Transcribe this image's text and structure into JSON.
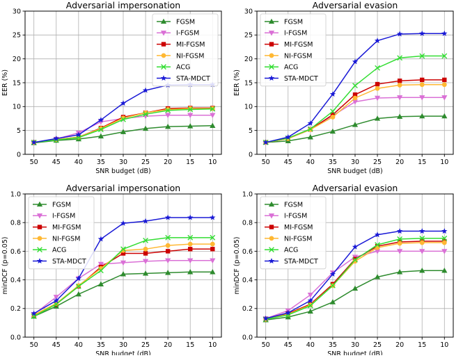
{
  "colors": {
    "FGSM": "#2e8b2e",
    "I-FGSM": "#da70d6",
    "MI-FGSM": "#cc0000",
    "NI-FGSM": "#ffb833",
    "ACG": "#33dd33",
    "STA-MDCT": "#1a1ad6"
  },
  "markers": {
    "FGSM": "triangle-up",
    "I-FGSM": "triangle-down",
    "MI-FGSM": "square",
    "NI-FGSM": "circle",
    "ACG": "x",
    "STA-MDCT": "star"
  },
  "chart_data": [
    {
      "type": "line",
      "title": "Adversarial impersonation",
      "xlabel": "SNR budget (dB)",
      "ylabel": "EER (%)",
      "x": [
        "50",
        "45",
        "40",
        "35",
        "30",
        "25",
        "20",
        "15",
        "10"
      ],
      "ylim": [
        0,
        30
      ],
      "yticks": [
        "0",
        "5",
        "10",
        "15",
        "20",
        "25",
        "30"
      ],
      "yticks_num": [
        0,
        5,
        10,
        15,
        20,
        25,
        30
      ],
      "grid": true,
      "legend": "top-right",
      "series": [
        {
          "name": "FGSM",
          "values": [
            2.4,
            2.9,
            3.2,
            3.8,
            4.7,
            5.4,
            5.8,
            5.9,
            6.0
          ]
        },
        {
          "name": "I-FGSM",
          "values": [
            2.5,
            3.2,
            4.5,
            6.8,
            7.5,
            8.0,
            8.2,
            8.2,
            8.2
          ]
        },
        {
          "name": "MI-FGSM",
          "values": [
            2.5,
            3.1,
            3.6,
            5.5,
            7.8,
            8.7,
            9.6,
            9.7,
            9.7
          ]
        },
        {
          "name": "NI-FGSM",
          "values": [
            2.5,
            3.1,
            3.6,
            5.4,
            7.6,
            8.7,
            9.4,
            9.6,
            9.6
          ]
        },
        {
          "name": "ACG",
          "values": [
            2.5,
            3.0,
            3.5,
            5.2,
            7.3,
            8.4,
            9.2,
            9.4,
            9.5
          ]
        },
        {
          "name": "STA-MDCT",
          "values": [
            2.5,
            3.3,
            4.1,
            7.2,
            10.7,
            13.4,
            14.5,
            14.6,
            14.6
          ]
        }
      ]
    },
    {
      "type": "line",
      "title": "Adversarial evasion",
      "xlabel": "SNR budget (dB)",
      "ylabel": "EER (%)",
      "x": [
        "50",
        "45",
        "40",
        "35",
        "30",
        "25",
        "20",
        "15",
        "10"
      ],
      "ylim": [
        0,
        30
      ],
      "yticks": [
        "0",
        "5",
        "10",
        "15",
        "20",
        "25",
        "30"
      ],
      "yticks_num": [
        0,
        5,
        10,
        15,
        20,
        25,
        30
      ],
      "grid": true,
      "legend": "top-left",
      "series": [
        {
          "name": "FGSM",
          "values": [
            2.5,
            2.8,
            3.6,
            4.8,
            6.2,
            7.5,
            7.9,
            8.0,
            8.0
          ]
        },
        {
          "name": "I-FGSM",
          "values": [
            2.5,
            3.4,
            5.3,
            8.1,
            11.0,
            11.8,
            11.9,
            11.9,
            11.9
          ]
        },
        {
          "name": "MI-FGSM",
          "values": [
            2.5,
            3.3,
            5.2,
            8.3,
            12.5,
            14.7,
            15.4,
            15.6,
            15.6
          ]
        },
        {
          "name": "NI-FGSM",
          "values": [
            2.5,
            3.3,
            5.2,
            7.8,
            11.8,
            13.8,
            14.5,
            14.6,
            14.6
          ]
        },
        {
          "name": "ACG",
          "values": [
            2.5,
            3.4,
            5.3,
            9.0,
            14.4,
            18.1,
            20.2,
            20.6,
            20.6
          ]
        },
        {
          "name": "STA-MDCT",
          "values": [
            2.5,
            3.6,
            6.5,
            12.6,
            19.4,
            23.8,
            25.2,
            25.3,
            25.3
          ]
        }
      ]
    },
    {
      "type": "line",
      "title": "Adversarial impersonation",
      "xlabel": "SNR budget (dB)",
      "ylabel": "minDCF (p=0.05)",
      "x": [
        "50",
        "45",
        "40",
        "35",
        "30",
        "25",
        "20",
        "15",
        "10"
      ],
      "ylim": [
        0,
        1
      ],
      "yticks": [
        "0.0",
        "0.2",
        "0.4",
        "0.6",
        "0.8",
        "1.0"
      ],
      "yticks_num": [
        0,
        0.2,
        0.4,
        0.6,
        0.8,
        1.0
      ],
      "grid": true,
      "legend": "top-left",
      "series": [
        {
          "name": "FGSM",
          "values": [
            0.145,
            0.215,
            0.3,
            0.37,
            0.44,
            0.445,
            0.45,
            0.455,
            0.455
          ]
        },
        {
          "name": "I-FGSM",
          "values": [
            0.16,
            0.28,
            0.41,
            0.51,
            0.52,
            0.53,
            0.535,
            0.535,
            0.535
          ]
        },
        {
          "name": "MI-FGSM",
          "values": [
            0.155,
            0.23,
            0.355,
            0.49,
            0.585,
            0.585,
            0.6,
            0.615,
            0.615
          ]
        },
        {
          "name": "NI-FGSM",
          "values": [
            0.155,
            0.235,
            0.36,
            0.48,
            0.605,
            0.615,
            0.64,
            0.65,
            0.65
          ]
        },
        {
          "name": "ACG",
          "values": [
            0.145,
            0.23,
            0.355,
            0.465,
            0.615,
            0.675,
            0.695,
            0.695,
            0.695
          ]
        },
        {
          "name": "STA-MDCT",
          "values": [
            0.165,
            0.255,
            0.41,
            0.685,
            0.795,
            0.81,
            0.835,
            0.835,
            0.835
          ]
        }
      ]
    },
    {
      "type": "line",
      "title": "Adversarial evasion",
      "xlabel": "SNR budget (dB)",
      "ylabel": "minDCF (p=0.05)",
      "x": [
        "50",
        "45",
        "40",
        "35",
        "30",
        "25",
        "20",
        "15",
        "10"
      ],
      "ylim": [
        0,
        1
      ],
      "yticks": [
        "0.0",
        "0.2",
        "0.4",
        "0.6",
        "0.8",
        "1.0"
      ],
      "yticks_num": [
        0,
        0.2,
        0.4,
        0.6,
        0.8,
        1.0
      ],
      "grid": true,
      "legend": "top-left",
      "series": [
        {
          "name": "FGSM",
          "values": [
            0.12,
            0.14,
            0.18,
            0.245,
            0.34,
            0.42,
            0.455,
            0.465,
            0.465
          ]
        },
        {
          "name": "I-FGSM",
          "values": [
            0.13,
            0.185,
            0.295,
            0.45,
            0.56,
            0.6,
            0.6,
            0.6,
            0.6
          ]
        },
        {
          "name": "MI-FGSM",
          "values": [
            0.125,
            0.165,
            0.23,
            0.37,
            0.545,
            0.635,
            0.665,
            0.67,
            0.67
          ]
        },
        {
          "name": "NI-FGSM",
          "values": [
            0.125,
            0.16,
            0.225,
            0.36,
            0.53,
            0.625,
            0.655,
            0.66,
            0.66
          ]
        },
        {
          "name": "ACG",
          "values": [
            0.125,
            0.155,
            0.22,
            0.36,
            0.54,
            0.645,
            0.685,
            0.69,
            0.69
          ]
        },
        {
          "name": "STA-MDCT",
          "values": [
            0.13,
            0.17,
            0.255,
            0.44,
            0.63,
            0.715,
            0.74,
            0.74,
            0.74
          ]
        }
      ]
    }
  ]
}
